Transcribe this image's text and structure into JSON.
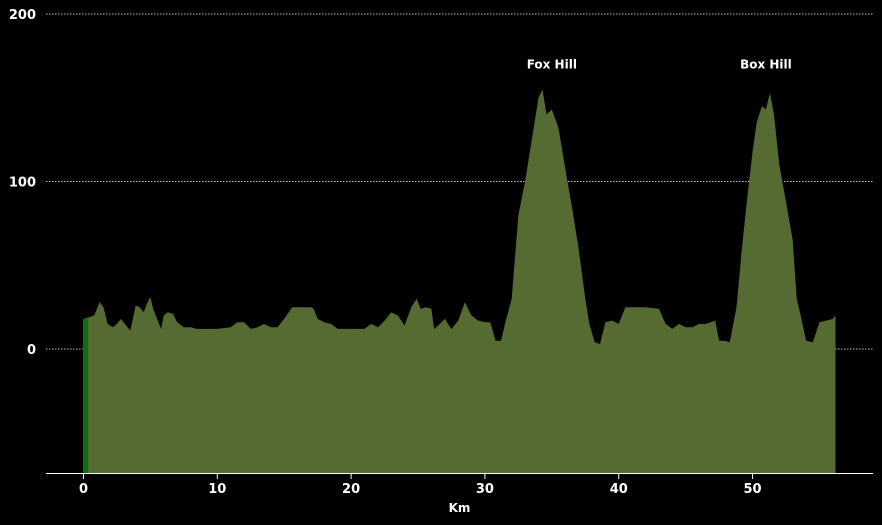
{
  "chart_data": {
    "type": "area",
    "title": "",
    "xlabel": "Km",
    "ylabel": "",
    "xlim": [
      -2.8,
      59
    ],
    "ylim": [
      -74,
      200
    ],
    "grid": true,
    "x_ticks": [
      0,
      10,
      20,
      30,
      40,
      50
    ],
    "x_tick_labels": [
      "0",
      "10",
      "20",
      "30",
      "40",
      "50"
    ],
    "y_ticks": [
      0,
      100,
      200
    ],
    "y_tick_labels": [
      "0",
      "100",
      "200"
    ],
    "colors": {
      "fill": "#556b32",
      "marker": "#0b6f0b",
      "grid": "#bbbbbb",
      "axis": "#ffffff",
      "background": "#000000"
    },
    "position_marker": {
      "x": 0.2
    },
    "annotations": [
      {
        "text": "Fox Hill",
        "x": 35.0,
        "y": 170
      },
      {
        "text": "Box Hill",
        "x": 51.0,
        "y": 170
      }
    ],
    "series": [
      {
        "x": [
          0.0,
          0.4,
          0.8,
          1.0,
          1.2,
          1.5,
          1.8,
          2.2,
          2.5,
          2.8,
          3.0,
          3.5,
          3.9,
          4.2,
          4.5,
          4.8,
          5.0,
          5.2,
          5.5,
          5.8,
          6.0,
          6.3,
          6.7,
          7.0,
          7.5,
          8.0,
          8.5,
          9.0,
          10.0,
          11.0,
          11.5,
          12.0,
          12.5,
          13.0,
          13.5,
          14.0,
          14.5,
          15.0,
          15.6,
          16.0,
          16.5,
          17.0,
          17.2,
          17.5,
          18.0,
          18.5,
          19.0,
          20.0,
          21.0,
          21.5,
          22.0,
          22.5,
          23.0,
          23.5,
          24.0,
          24.5,
          24.9,
          25.2,
          25.6,
          26.0,
          26.2,
          26.5,
          27.0,
          27.5,
          28.0,
          28.5,
          28.8,
          29.0,
          29.5,
          30.0,
          30.4,
          30.8,
          31.2,
          31.5,
          32.0,
          32.5,
          33.0,
          33.5,
          34.0,
          34.3,
          34.6,
          35.0,
          35.5,
          36.0,
          36.5,
          37.0,
          37.5,
          37.8,
          38.2,
          38.6,
          39.0,
          39.5,
          40.0,
          40.5,
          41.0,
          42.0,
          43.0,
          43.5,
          44.0,
          44.5,
          45.0,
          45.5,
          46.0,
          46.5,
          46.9,
          47.2,
          47.5,
          47.9,
          48.3,
          48.8,
          49.2,
          49.6,
          50.0,
          50.3,
          50.7,
          51.0,
          51.3,
          51.6,
          52.0,
          52.5,
          53.0,
          53.3,
          53.6,
          54.0,
          54.5,
          55.0,
          55.5,
          56.0,
          56.2
        ],
        "values": [
          18,
          19,
          20,
          24,
          28,
          25,
          15,
          13,
          15,
          18,
          16,
          11,
          26,
          25,
          22,
          28,
          31,
          24,
          18,
          12,
          20,
          22,
          21,
          16,
          13,
          13,
          12,
          12,
          12,
          13,
          16,
          16,
          12,
          13,
          15,
          13,
          13,
          18,
          25,
          25,
          25,
          25,
          24,
          18,
          16,
          15,
          12,
          12,
          12,
          15,
          13,
          17,
          22,
          20,
          14,
          25,
          30,
          24,
          25,
          24,
          12,
          14,
          18,
          12,
          17,
          28,
          23,
          20,
          17,
          16,
          16,
          5,
          5,
          15,
          30,
          80,
          100,
          125,
          150,
          155,
          140,
          143,
          132,
          108,
          85,
          60,
          30,
          15,
          4,
          3,
          16,
          17,
          15,
          25,
          25,
          25,
          24,
          15,
          12,
          15,
          13,
          13,
          15,
          15,
          16,
          17,
          5,
          5,
          4,
          25,
          60,
          90,
          118,
          135,
          145,
          143,
          153,
          140,
          110,
          88,
          65,
          30,
          20,
          5,
          4,
          16,
          17,
          18,
          20
        ]
      }
    ]
  }
}
